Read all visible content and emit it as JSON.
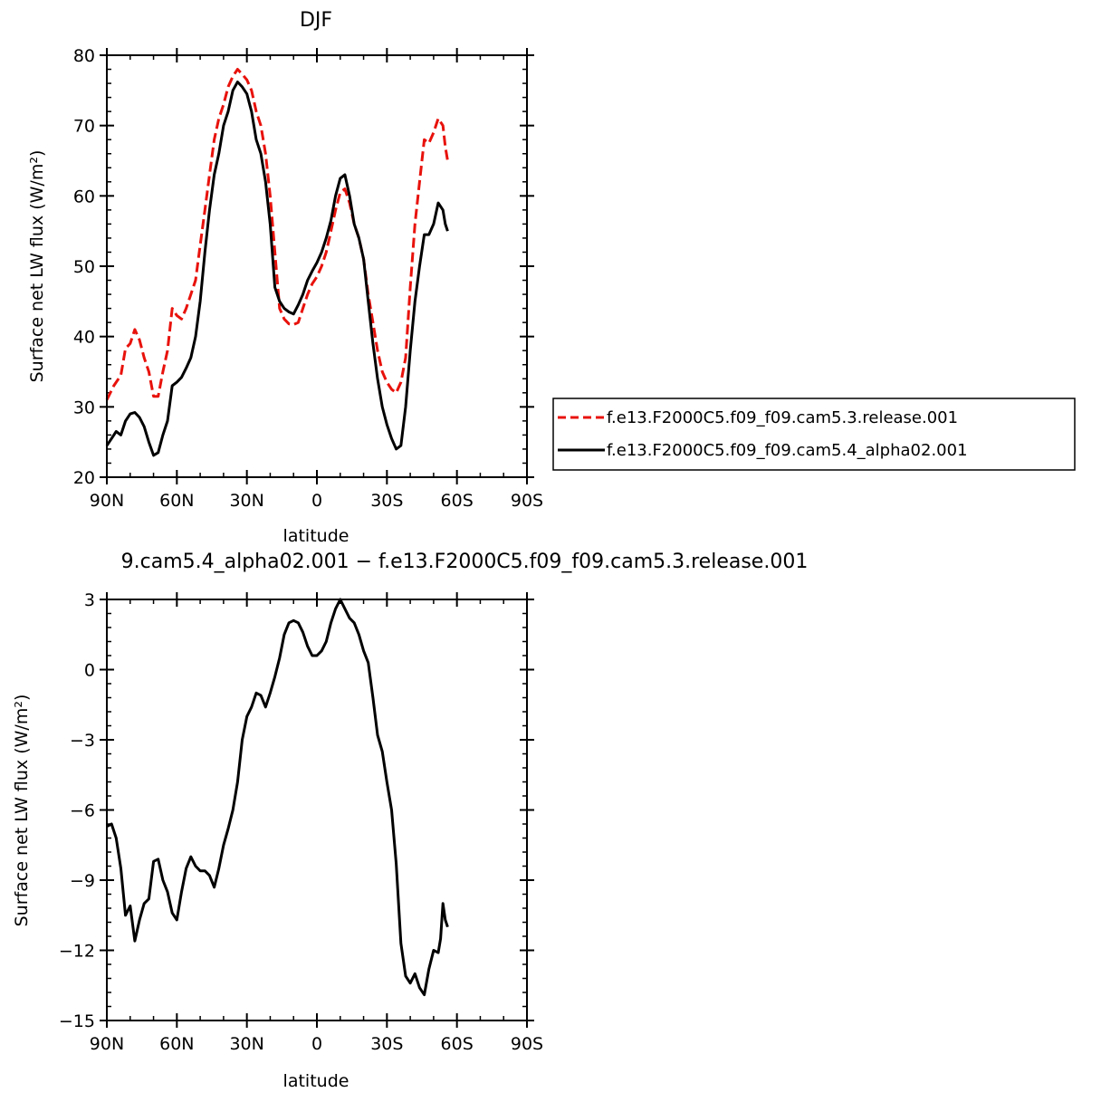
{
  "chart_data": [
    {
      "type": "line",
      "title": "DJF",
      "xlabel": "latitude",
      "ylabel": "Surface net LW flux (W/m²)",
      "ylim": [
        20,
        80
      ],
      "yticks": [
        20,
        30,
        40,
        50,
        60,
        70,
        80
      ],
      "xlim": [
        0,
        180
      ],
      "x_ticks": [
        {
          "pos": 0,
          "label": "90N"
        },
        {
          "pos": 30,
          "label": "60N"
        },
        {
          "pos": 60,
          "label": "30N"
        },
        {
          "pos": 90,
          "label": "0"
        },
        {
          "pos": 120,
          "label": "30S"
        },
        {
          "pos": 150,
          "label": "60S"
        },
        {
          "pos": 180,
          "label": "90S"
        }
      ],
      "grid": false,
      "legend_position": "right",
      "series": [
        {
          "name": "f.e13.F2000C5.f09_f09.cam5.3.release.001",
          "color": "#e8120c",
          "dash": true,
          "points": [
            [
              0,
              31
            ],
            [
              3,
              33
            ],
            [
              6,
              34.5
            ],
            [
              8,
              38.3
            ],
            [
              10,
              39
            ],
            [
              12,
              41
            ],
            [
              14,
              39.5
            ],
            [
              16,
              37
            ],
            [
              18,
              35
            ],
            [
              20,
              31.5
            ],
            [
              22,
              31.5
            ],
            [
              24,
              35
            ],
            [
              26,
              38
            ],
            [
              28,
              44
            ],
            [
              30,
              43
            ],
            [
              32,
              42.5
            ],
            [
              34,
              44
            ],
            [
              36,
              46
            ],
            [
              38,
              48
            ],
            [
              40,
              53
            ],
            [
              42,
              58
            ],
            [
              44,
              63
            ],
            [
              46,
              68
            ],
            [
              48,
              71
            ],
            [
              50,
              73
            ],
            [
              52,
              75.5
            ],
            [
              54,
              77
            ],
            [
              56,
              78
            ],
            [
              58,
              77.3
            ],
            [
              60,
              76.5
            ],
            [
              62,
              75
            ],
            [
              64,
              72
            ],
            [
              66,
              70
            ],
            [
              68,
              66
            ],
            [
              70,
              60
            ],
            [
              72,
              52
            ],
            [
              74,
              44
            ],
            [
              76,
              42.5
            ],
            [
              78,
              41.8
            ],
            [
              80,
              41.7
            ],
            [
              82,
              42
            ],
            [
              84,
              44
            ],
            [
              86,
              46
            ],
            [
              88,
              47.5
            ],
            [
              90,
              48.5
            ],
            [
              92,
              50
            ],
            [
              94,
              52
            ],
            [
              96,
              55
            ],
            [
              98,
              58
            ],
            [
              100,
              60.5
            ],
            [
              102,
              61
            ],
            [
              104,
              59
            ],
            [
              106,
              56
            ],
            [
              108,
              54
            ],
            [
              110,
              51
            ],
            [
              112,
              46
            ],
            [
              114,
              42
            ],
            [
              116,
              38
            ],
            [
              118,
              35
            ],
            [
              120,
              33.5
            ],
            [
              122,
              32.5
            ],
            [
              124,
              32
            ],
            [
              126,
              33.5
            ],
            [
              128,
              37
            ],
            [
              130,
              47
            ],
            [
              132,
              56
            ],
            [
              134,
              62
            ],
            [
              136,
              68
            ],
            [
              138,
              67.5
            ],
            [
              140,
              69
            ],
            [
              142,
              71
            ],
            [
              144,
              70
            ],
            [
              145,
              67
            ],
            [
              146,
              65
            ]
          ]
        },
        {
          "name": "f.e13.F2000C5.f09_f09.cam5.4_alpha02.001",
          "color": "#000000",
          "dash": false,
          "points": [
            [
              0,
              24.5
            ],
            [
              2,
              25.5
            ],
            [
              4,
              26.5
            ],
            [
              6,
              26
            ],
            [
              8,
              28
            ],
            [
              10,
              29
            ],
            [
              12,
              29.2
            ],
            [
              14,
              28.5
            ],
            [
              16,
              27.2
            ],
            [
              18,
              25
            ],
            [
              20,
              23.1
            ],
            [
              22,
              23.5
            ],
            [
              24,
              26
            ],
            [
              26,
              28
            ],
            [
              28,
              33
            ],
            [
              30,
              33.5
            ],
            [
              32,
              34.2
            ],
            [
              34,
              35.5
            ],
            [
              36,
              37
            ],
            [
              38,
              40
            ],
            [
              40,
              45
            ],
            [
              42,
              52
            ],
            [
              44,
              58
            ],
            [
              46,
              63
            ],
            [
              48,
              66
            ],
            [
              50,
              70
            ],
            [
              52,
              72
            ],
            [
              54,
              75
            ],
            [
              56,
              76.2
            ],
            [
              58,
              75.5
            ],
            [
              60,
              74.5
            ],
            [
              62,
              72
            ],
            [
              64,
              68
            ],
            [
              66,
              66
            ],
            [
              68,
              62
            ],
            [
              70,
              56
            ],
            [
              72,
              47
            ],
            [
              74,
              45
            ],
            [
              76,
              44
            ],
            [
              78,
              43.5
            ],
            [
              80,
              43.2
            ],
            [
              82,
              44.5
            ],
            [
              84,
              46
            ],
            [
              86,
              48
            ],
            [
              88,
              49.3
            ],
            [
              90,
              50.5
            ],
            [
              92,
              52
            ],
            [
              94,
              54
            ],
            [
              96,
              56.5
            ],
            [
              98,
              60
            ],
            [
              100,
              62.5
            ],
            [
              102,
              63
            ],
            [
              104,
              60
            ],
            [
              106,
              56
            ],
            [
              108,
              54
            ],
            [
              110,
              51
            ],
            [
              112,
              45
            ],
            [
              114,
              39
            ],
            [
              116,
              34
            ],
            [
              118,
              30
            ],
            [
              120,
              27.5
            ],
            [
              122,
              25.5
            ],
            [
              124,
              24
            ],
            [
              126,
              24.5
            ],
            [
              128,
              30
            ],
            [
              130,
              38
            ],
            [
              132,
              45
            ],
            [
              134,
              50
            ],
            [
              136,
              54.5
            ],
            [
              138,
              54.5
            ],
            [
              140,
              56
            ],
            [
              142,
              59
            ],
            [
              144,
              58
            ],
            [
              145,
              56
            ],
            [
              146,
              55
            ]
          ]
        }
      ]
    },
    {
      "type": "line",
      "title": "9.cam5.4_alpha02.001 − f.e13.F2000C5.f09_f09.cam5.3.release.001",
      "xlabel": "latitude",
      "ylabel": "Surface net LW flux (W/m²)",
      "ylim": [
        -15,
        3
      ],
      "yticks": [
        -15,
        -12,
        -9,
        -6,
        -3,
        0,
        3
      ],
      "ytick_labels": [
        "−15",
        "−12",
        "−9",
        "−6",
        "−3",
        "0",
        "3"
      ],
      "xlim": [
        0,
        180
      ],
      "x_ticks": [
        {
          "pos": 0,
          "label": "90N"
        },
        {
          "pos": 30,
          "label": "60N"
        },
        {
          "pos": 60,
          "label": "30N"
        },
        {
          "pos": 90,
          "label": "0"
        },
        {
          "pos": 120,
          "label": "30S"
        },
        {
          "pos": 150,
          "label": "60S"
        },
        {
          "pos": 180,
          "label": "90S"
        }
      ],
      "grid": false,
      "series": [
        {
          "color": "#000000",
          "dash": false,
          "points": [
            [
              0,
              -6.7
            ],
            [
              2,
              -6.6
            ],
            [
              4,
              -7.2
            ],
            [
              6,
              -8.5
            ],
            [
              8,
              -10.5
            ],
            [
              10,
              -10.1
            ],
            [
              12,
              -11.6
            ],
            [
              14,
              -10.7
            ],
            [
              16,
              -10
            ],
            [
              18,
              -9.8
            ],
            [
              20,
              -8.2
            ],
            [
              22,
              -8.1
            ],
            [
              24,
              -9
            ],
            [
              26,
              -9.5
            ],
            [
              28,
              -10.4
            ],
            [
              30,
              -10.7
            ],
            [
              32,
              -9.5
            ],
            [
              34,
              -8.5
            ],
            [
              36,
              -8
            ],
            [
              38,
              -8.4
            ],
            [
              40,
              -8.6
            ],
            [
              42,
              -8.6
            ],
            [
              44,
              -8.8
            ],
            [
              46,
              -9.3
            ],
            [
              48,
              -8.5
            ],
            [
              50,
              -7.5
            ],
            [
              52,
              -6.8
            ],
            [
              54,
              -6
            ],
            [
              56,
              -4.8
            ],
            [
              58,
              -3
            ],
            [
              60,
              -2
            ],
            [
              62,
              -1.6
            ],
            [
              64,
              -1
            ],
            [
              66,
              -1.1
            ],
            [
              68,
              -1.6
            ],
            [
              70,
              -1
            ],
            [
              72,
              -0.3
            ],
            [
              74,
              0.5
            ],
            [
              76,
              1.5
            ],
            [
              78,
              2
            ],
            [
              80,
              2.1
            ],
            [
              82,
              2
            ],
            [
              84,
              1.6
            ],
            [
              86,
              1
            ],
            [
              88,
              0.6
            ],
            [
              90,
              0.6
            ],
            [
              92,
              0.8
            ],
            [
              94,
              1.2
            ],
            [
              96,
              2
            ],
            [
              98,
              2.6
            ],
            [
              100,
              3
            ],
            [
              102,
              2.6
            ],
            [
              104,
              2.2
            ],
            [
              106,
              2
            ],
            [
              108,
              1.5
            ],
            [
              110,
              0.8
            ],
            [
              112,
              0.3
            ],
            [
              114,
              -1.2
            ],
            [
              116,
              -2.8
            ],
            [
              118,
              -3.5
            ],
            [
              120,
              -4.8
            ],
            [
              122,
              -6
            ],
            [
              124,
              -8.3
            ],
            [
              126,
              -11.7
            ],
            [
              128,
              -13.1
            ],
            [
              130,
              -13.4
            ],
            [
              132,
              -13
            ],
            [
              134,
              -13.6
            ],
            [
              136,
              -13.9
            ],
            [
              138,
              -12.8
            ],
            [
              140,
              -12
            ],
            [
              142,
              -12.1
            ],
            [
              143,
              -11.5
            ],
            [
              144,
              -10
            ],
            [
              145,
              -10.7
            ],
            [
              146,
              -11
            ]
          ]
        }
      ]
    }
  ]
}
